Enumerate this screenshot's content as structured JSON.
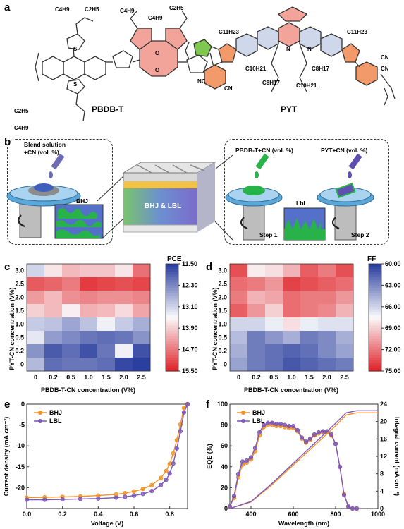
{
  "panels": {
    "a": "a",
    "b": "b",
    "c": "c",
    "d": "d",
    "e": "e",
    "f": "f"
  },
  "chem": {
    "left_name": "PBDB-T",
    "right_name": "PYT",
    "c4h9": "C4H9",
    "c2h5": "C2H5",
    "c11h23": "C11H23",
    "c10h21": "C10H21",
    "c8h17": "C8H17",
    "cn": "CN",
    "nc": "NC",
    "n_sub": "n",
    "o": "O",
    "s": "S",
    "n": "N"
  },
  "device": {
    "blend_label": "Blend solution\n+CN (vol. %)",
    "bhj_small": "BHJ",
    "center_label": "BHJ & LBL",
    "pbdbt_label": "PBDB-T+CN (vol. %)",
    "pyt_label": "PYT+CN (vol. %)",
    "lbl_small": "LbL",
    "step1": "Step 1",
    "step2": "Step 2"
  },
  "heatmap_c": {
    "colorbar_title": "PCE",
    "colorbar_ticks": [
      "11.50",
      "12.30",
      "13.10",
      "13.90",
      "14.70",
      "15.50"
    ],
    "ylabel": "PYT-CN concentration (V%)",
    "xlabel": "PBDB-T-CN concentration (V%)",
    "x_ticks": [
      "0",
      "0.2",
      "0.5",
      "1.0",
      "1.5",
      "2.0",
      "2.5"
    ],
    "y_ticks": [
      "3.0",
      "2.5",
      "2.0",
      "1.5",
      "1.0",
      "0.5",
      "0.2",
      "0"
    ]
  },
  "heatmap_d": {
    "colorbar_title": "FF",
    "colorbar_ticks": [
      "60.00",
      "63.00",
      "66.00",
      "69.00",
      "72.00",
      "75.00"
    ],
    "ylabel": "PYT-CN concentration (V%)",
    "xlabel": "PBDB-T-CN concentration (V%)",
    "x_ticks": [
      "0",
      "0.2",
      "0.5",
      "1.0",
      "1.5",
      "2.0",
      "2.5"
    ],
    "y_ticks": [
      "3.0",
      "2.5",
      "2.0",
      "1.5",
      "1.0",
      "0.5",
      "0.2",
      "0"
    ]
  },
  "chart_data": [
    {
      "type": "heatmap",
      "panel": "c",
      "metric": "PCE",
      "x_categories": [
        "0",
        "0.2",
        "0.5",
        "1.0",
        "1.5",
        "2.0",
        "2.5"
      ],
      "y_categories": [
        "3.0",
        "2.5",
        "2.0",
        "1.5",
        "1.0",
        "0.5",
        "0.2",
        "0"
      ],
      "xlabel": "PBDB-T-CN concentration (V%)",
      "ylabel": "PYT-CN concentration (V%)",
      "color_range": [
        11.5,
        15.5
      ],
      "colorscale": "blue(high) to red(low)",
      "values": [
        [
          13.9,
          13.3,
          12.9,
          13.0,
          13.0,
          13.3,
          12.2
        ],
        [
          12.0,
          12.1,
          12.3,
          11.7,
          11.8,
          11.9,
          11.8
        ],
        [
          12.6,
          12.9,
          12.5,
          12.4,
          12.5,
          12.5,
          12.4
        ],
        [
          13.1,
          12.9,
          13.4,
          12.8,
          12.9,
          13.2,
          12.7
        ],
        [
          14.0,
          14.1,
          14.4,
          14.1,
          13.6,
          14.0,
          14.3
        ],
        [
          13.7,
          14.5,
          14.7,
          14.9,
          15.0,
          14.9,
          14.6
        ],
        [
          14.6,
          15.2,
          15.0,
          15.3,
          14.9,
          13.6,
          15.3
        ],
        [
          14.2,
          15.0,
          14.9,
          14.9,
          15.0,
          15.4,
          15.5
        ]
      ]
    },
    {
      "type": "heatmap",
      "panel": "d",
      "metric": "FF",
      "x_categories": [
        "0",
        "0.2",
        "0.5",
        "1.0",
        "1.5",
        "2.0",
        "2.5"
      ],
      "y_categories": [
        "3.0",
        "2.5",
        "2.0",
        "1.5",
        "1.0",
        "0.5",
        "0.2",
        "0"
      ],
      "xlabel": "PBDB-T-CN concentration (V%)",
      "ylabel": "PYT-CN concentration (V%)",
      "color_range": [
        60.0,
        75.0
      ],
      "colorscale": "blue(60) to red(75)",
      "values": [
        [
          73.5,
          68.0,
          68.5,
          70.0,
          73.0,
          72.0,
          73.5
        ],
        [
          72.5,
          72.0,
          71.0,
          74.0,
          73.5,
          73.0,
          72.5
        ],
        [
          72.0,
          70.0,
          70.5,
          72.5,
          72.0,
          72.0,
          71.0
        ],
        [
          73.0,
          71.0,
          69.0,
          72.5,
          72.0,
          71.5,
          70.0
        ],
        [
          66.0,
          66.0,
          67.0,
          68.5,
          67.0,
          66.5,
          66.5
        ],
        [
          65.0,
          62.5,
          63.5,
          64.5,
          62.5,
          63.0,
          64.5
        ],
        [
          64.5,
          62.5,
          62.0,
          61.5,
          62.0,
          63.0,
          64.0
        ],
        [
          64.0,
          62.5,
          62.0,
          61.0,
          61.5,
          62.0,
          62.5
        ]
      ]
    },
    {
      "type": "line",
      "panel": "e",
      "xlabel": "Voltage (V)",
      "ylabel": "Current density (mA cm⁻²)",
      "xlim": [
        0.0,
        0.9
      ],
      "ylim": [
        -25,
        0
      ],
      "x_ticks": [
        "0.0",
        "0.2",
        "0.4",
        "0.6",
        "0.8"
      ],
      "y_ticks": [
        "0",
        "-5",
        "-10",
        "-15",
        "-20"
      ],
      "legend_position": "top-left",
      "series": [
        {
          "name": "BHJ",
          "color": "#f39226",
          "x": [
            0.0,
            0.1,
            0.2,
            0.3,
            0.4,
            0.5,
            0.55,
            0.6,
            0.65,
            0.7,
            0.75,
            0.78,
            0.8,
            0.82,
            0.84,
            0.86,
            0.88,
            0.9
          ],
          "y": [
            -22.4,
            -22.3,
            -22.2,
            -22.1,
            -21.9,
            -21.6,
            -21.3,
            -20.9,
            -20.3,
            -19.4,
            -17.7,
            -16.0,
            -14.3,
            -11.8,
            -8.6,
            -4.9,
            -0.9,
            0.0
          ]
        },
        {
          "name": "LBL",
          "color": "#7b57b8",
          "x": [
            0.0,
            0.1,
            0.2,
            0.3,
            0.4,
            0.5,
            0.55,
            0.6,
            0.65,
            0.7,
            0.75,
            0.78,
            0.8,
            0.82,
            0.84,
            0.86,
            0.88,
            0.9
          ],
          "y": [
            -22.9,
            -22.9,
            -22.8,
            -22.7,
            -22.6,
            -22.4,
            -22.2,
            -21.9,
            -21.5,
            -20.8,
            -19.4,
            -18.1,
            -16.6,
            -14.2,
            -10.6,
            -6.5,
            -2.0,
            0.0
          ]
        }
      ]
    },
    {
      "type": "line",
      "panel": "f",
      "xlabel": "Wavelength (nm)",
      "ylabel": "EQE (%)",
      "ylabel_right": "Integral current (mA cm⁻²)",
      "xlim": [
        300,
        1000
      ],
      "ylim": [
        0,
        100
      ],
      "ylim_right": [
        0,
        24
      ],
      "x_ticks": [
        "400",
        "600",
        "800",
        "1000"
      ],
      "y_ticks": [
        "0",
        "20",
        "40",
        "60",
        "80",
        "100"
      ],
      "y_ticks_right": [
        "0",
        "4",
        "8",
        "12",
        "16",
        "20",
        "24"
      ],
      "legend_position": "top-left",
      "series": [
        {
          "name": "BHJ",
          "color": "#f39226",
          "x": [
            300,
            320,
            340,
            360,
            380,
            400,
            420,
            440,
            460,
            480,
            500,
            520,
            540,
            560,
            580,
            600,
            620,
            640,
            660,
            680,
            700,
            720,
            740,
            760,
            780,
            800,
            820,
            840,
            860,
            880,
            900
          ],
          "y": [
            2,
            10,
            30,
            42,
            44,
            47,
            55,
            70,
            78,
            80,
            80,
            79,
            79,
            78,
            77,
            77,
            74,
            67,
            63,
            66,
            70,
            72,
            73,
            73,
            70,
            62,
            40,
            14,
            2,
            0,
            0
          ]
        },
        {
          "name": "LBL",
          "color": "#7b57b8",
          "x": [
            300,
            320,
            340,
            360,
            380,
            400,
            420,
            440,
            460,
            480,
            500,
            520,
            540,
            560,
            580,
            600,
            620,
            640,
            660,
            680,
            700,
            720,
            740,
            760,
            780,
            800,
            820,
            840,
            860,
            880,
            900
          ],
          "y": [
            2,
            12,
            33,
            45,
            46,
            49,
            58,
            73,
            80,
            82,
            82,
            81,
            81,
            80,
            79,
            79,
            75,
            68,
            64,
            67,
            71,
            73,
            74,
            74,
            71,
            62,
            40,
            13,
            2,
            0,
            0
          ]
        },
        {
          "name": "BHJ integral",
          "color": "#f39226",
          "axis": "right",
          "x": [
            300,
            400,
            500,
            600,
            700,
            800,
            850,
            900,
            1000
          ],
          "y": [
            0,
            1.5,
            5.5,
            10.0,
            14.5,
            19.0,
            21.5,
            22.0,
            22.0
          ]
        },
        {
          "name": "LBL integral",
          "color": "#7b57b8",
          "axis": "right",
          "x": [
            300,
            400,
            500,
            600,
            700,
            800,
            850,
            900,
            1000
          ],
          "y": [
            0,
            1.6,
            5.8,
            10.4,
            15.0,
            19.6,
            22.0,
            22.5,
            22.5
          ]
        }
      ]
    }
  ]
}
